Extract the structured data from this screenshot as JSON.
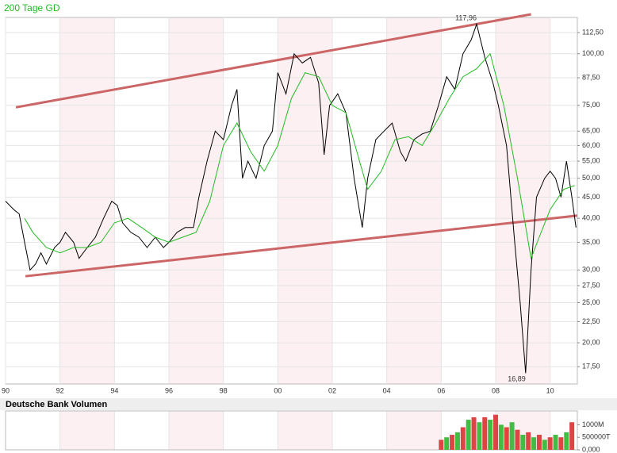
{
  "chart_data": [
    {
      "type": "line",
      "log_scale": true,
      "xlim": [
        1990,
        2011
      ],
      "ylim": [
        15.9,
        122.4
      ],
      "xticks": [
        {
          "value": 1990,
          "label": "90"
        },
        {
          "value": 1992,
          "label": "92"
        },
        {
          "value": 1994,
          "label": "94"
        },
        {
          "value": 1996,
          "label": "96"
        },
        {
          "value": 1998,
          "label": "98"
        },
        {
          "value": 2000,
          "label": "00"
        },
        {
          "value": 2002,
          "label": "02"
        },
        {
          "value": 2004,
          "label": "04"
        },
        {
          "value": 2006,
          "label": "06"
        },
        {
          "value": 2008,
          "label": "08"
        },
        {
          "value": 2010,
          "label": "10"
        }
      ],
      "yticks": [
        {
          "value": 112.5,
          "label": "112,50"
        },
        {
          "value": 100,
          "label": "100,00"
        },
        {
          "value": 87.5,
          "label": "87,50"
        },
        {
          "value": 75,
          "label": "75,00"
        },
        {
          "value": 65,
          "label": "65,00"
        },
        {
          "value": 60,
          "label": "60,00"
        },
        {
          "value": 55,
          "label": "55,00"
        },
        {
          "value": 50,
          "label": "50,00"
        },
        {
          "value": 45,
          "label": "45,00"
        },
        {
          "value": 40,
          "label": "40,00"
        },
        {
          "value": 35,
          "label": "35,00"
        },
        {
          "value": 30,
          "label": "30,00"
        },
        {
          "value": 27.5,
          "label": "27,50"
        },
        {
          "value": 25,
          "label": "25,00"
        },
        {
          "value": 22.5,
          "label": "22,50"
        },
        {
          "value": 20,
          "label": "20,00"
        },
        {
          "value": 17.5,
          "label": "17,50"
        }
      ],
      "grid": true,
      "series": [
        {
          "color": "#000000",
          "x": [
            1990.0,
            1990.3,
            1990.5,
            1990.7,
            1990.9,
            1991.1,
            1991.3,
            1991.5,
            1991.8,
            1992.0,
            1992.2,
            1992.5,
            1992.7,
            1993.0,
            1993.3,
            1993.6,
            1993.9,
            1994.1,
            1994.3,
            1994.6,
            1994.9,
            1995.2,
            1995.5,
            1995.8,
            1996.0,
            1996.3,
            1996.6,
            1996.9,
            1997.1,
            1997.4,
            1997.7,
            1998.0,
            1998.3,
            1998.5,
            1998.7,
            1998.9,
            1999.2,
            1999.5,
            1999.8,
            2000.0,
            2000.3,
            2000.6,
            2000.9,
            2001.2,
            2001.5,
            2001.7,
            2001.9,
            2002.2,
            2002.5,
            2002.8,
            2003.1,
            2003.3,
            2003.6,
            2003.9,
            2004.2,
            2004.5,
            2004.7,
            2005.0,
            2005.3,
            2005.6,
            2005.9,
            2006.2,
            2006.5,
            2006.8,
            2007.1,
            2007.3,
            2007.6,
            2007.9,
            2008.1,
            2008.4,
            2008.7,
            2008.9,
            2009.1,
            2009.3,
            2009.5,
            2009.8,
            2010.0,
            2010.2,
            2010.4,
            2010.6,
            2010.8,
            2010.95
          ],
          "values": [
            44,
            42,
            41,
            35,
            30,
            31,
            33,
            31,
            34,
            35,
            37,
            35,
            32,
            34,
            36,
            40,
            44,
            43,
            39,
            37,
            36,
            34,
            36,
            34,
            35,
            37,
            38,
            38,
            45,
            55,
            65,
            62,
            75,
            82,
            50,
            55,
            50,
            60,
            65,
            90,
            80,
            100,
            95,
            98,
            85,
            57,
            75,
            80,
            72,
            50,
            38,
            50,
            62,
            65,
            68,
            58,
            55,
            62,
            64,
            65,
            75,
            88,
            82,
            100,
            108,
            117.96,
            98,
            85,
            75,
            60,
            35,
            25,
            16.89,
            30,
            45,
            50,
            52,
            50,
            45,
            55,
            45,
            38
          ],
          "value_labels": [
            null,
            null,
            null,
            null,
            null,
            null,
            null,
            null,
            null,
            null,
            null,
            null,
            null,
            null,
            null,
            null,
            null,
            null,
            null,
            null,
            null,
            null,
            null,
            null,
            null,
            null,
            null,
            null,
            null,
            null,
            null,
            null,
            null,
            null,
            null,
            null,
            null,
            null,
            null,
            null,
            null,
            null,
            null,
            null,
            null,
            null,
            null,
            null,
            null,
            null,
            null,
            null,
            null,
            null,
            null,
            null,
            null,
            null,
            null,
            null,
            null,
            null,
            null,
            null,
            null,
            "117,96",
            null,
            null,
            null,
            null,
            null,
            null,
            "16,89",
            null,
            null,
            null,
            null,
            null,
            null,
            null,
            null,
            null
          ]
        },
        {
          "name": "200 Tage GD",
          "color": "#22bb22",
          "x": [
            1990.7,
            1991.0,
            1991.5,
            1992.0,
            1992.5,
            1993.0,
            1993.5,
            1994.0,
            1994.5,
            1995.0,
            1995.5,
            1996.0,
            1996.5,
            1997.0,
            1997.5,
            1998.0,
            1998.5,
            1999.0,
            1999.5,
            2000.0,
            2000.5,
            2001.0,
            2001.5,
            2002.0,
            2002.5,
            2003.0,
            2003.3,
            2003.8,
            2004.3,
            2004.8,
            2005.3,
            2005.8,
            2006.3,
            2006.8,
            2007.3,
            2007.8,
            2008.3,
            2008.8,
            2009.3,
            2009.6,
            2010.0,
            2010.5,
            2010.9
          ],
          "values": [
            40,
            37,
            34,
            33,
            34,
            34,
            35,
            39,
            40,
            38,
            36,
            35,
            36,
            37,
            44,
            60,
            68,
            58,
            52,
            60,
            78,
            90,
            88,
            75,
            72,
            55,
            47,
            52,
            62,
            63,
            60,
            68,
            78,
            88,
            92,
            100,
            75,
            50,
            32,
            36,
            42,
            47,
            48
          ]
        }
      ],
      "trendlines": [
        {
          "color": "#cc6666",
          "x": [
            1990.38,
            2009.3
          ],
          "values": [
            74.2,
            124.6
          ]
        },
        {
          "color": "#cc6666",
          "x": [
            1990.73,
            2011.0
          ],
          "values": [
            28.97,
            40.6
          ]
        }
      ]
    },
    {
      "type": "bar",
      "title": "Deutsche Bank Volumen",
      "xlim": [
        1990,
        2011
      ],
      "ylim": [
        0,
        1550000000
      ],
      "yticks": [
        {
          "value": 1000000000,
          "label": "1000M"
        },
        {
          "value": 500000000,
          "label": "500000T"
        },
        {
          "value": 0,
          "label": "0,000"
        }
      ],
      "x": [
        2006.0,
        2006.2,
        2006.4,
        2006.6,
        2006.8,
        2007.0,
        2007.2,
        2007.4,
        2007.6,
        2007.8,
        2008.0,
        2008.2,
        2008.4,
        2008.6,
        2008.8,
        2009.0,
        2009.2,
        2009.4,
        2009.6,
        2009.8,
        2010.0,
        2010.2,
        2010.4,
        2010.6,
        2010.8
      ],
      "values": [
        400000000,
        500000000,
        600000000,
        700000000,
        900000000,
        1200000000,
        1300000000,
        1100000000,
        1300000000,
        1200000000,
        1400000000,
        1000000000,
        900000000,
        1100000000,
        800000000,
        600000000,
        700000000,
        500000000,
        600000000,
        400000000,
        500000000,
        600000000,
        500000000,
        700000000,
        1100000000
      ],
      "colors": [
        "#dd4444",
        "#44bb44",
        "#dd4444",
        "#44bb44",
        "#dd4444",
        "#44bb44",
        "#dd4444",
        "#44bb44",
        "#dd4444",
        "#44bb44",
        "#dd4444",
        "#44bb44",
        "#dd4444",
        "#44bb44",
        "#dd4444",
        "#44bb44",
        "#dd4444",
        "#44bb44",
        "#dd4444",
        "#44bb44",
        "#dd4444",
        "#44bb44",
        "#dd4444",
        "#44bb44",
        "#dd4444"
      ]
    }
  ]
}
